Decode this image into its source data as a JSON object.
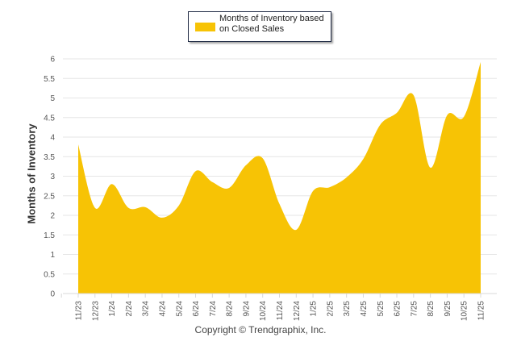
{
  "legend": {
    "label": "Months of Inventory based on Closed Sales",
    "color": "#f7c305"
  },
  "copyright": "Copyright © Trendgraphix, Inc.",
  "chart_data": {
    "type": "area",
    "title": "",
    "xlabel": "",
    "ylabel": "Months of Inventory",
    "ylim": [
      0,
      6
    ],
    "yticks": [
      "0",
      "0.5",
      "1",
      "1.5",
      "2",
      "2.5",
      "3",
      "3.5",
      "4",
      "4.5",
      "5",
      "5.5",
      "6"
    ],
    "grid": true,
    "legend_position": "top-center",
    "categories": [
      "11/23",
      "12/23",
      "1/24",
      "2/24",
      "3/24",
      "4/24",
      "5/24",
      "6/24",
      "7/24",
      "8/24",
      "9/24",
      "10/24",
      "11/24",
      "12/24",
      "1/25",
      "2/25",
      "3/25",
      "4/25",
      "5/25",
      "6/25",
      "7/25",
      "8/25",
      "9/25",
      "10/25",
      "11/25"
    ],
    "series": [
      {
        "name": "Months of Inventory based on Closed Sales",
        "color": "#f7c305",
        "values": [
          3.81,
          2.19,
          2.8,
          2.19,
          2.21,
          1.94,
          2.25,
          3.13,
          2.85,
          2.7,
          3.28,
          3.46,
          2.29,
          1.63,
          2.62,
          2.72,
          2.97,
          3.44,
          4.31,
          4.62,
          5.07,
          3.22,
          4.56,
          4.52,
          5.92
        ]
      }
    ]
  }
}
